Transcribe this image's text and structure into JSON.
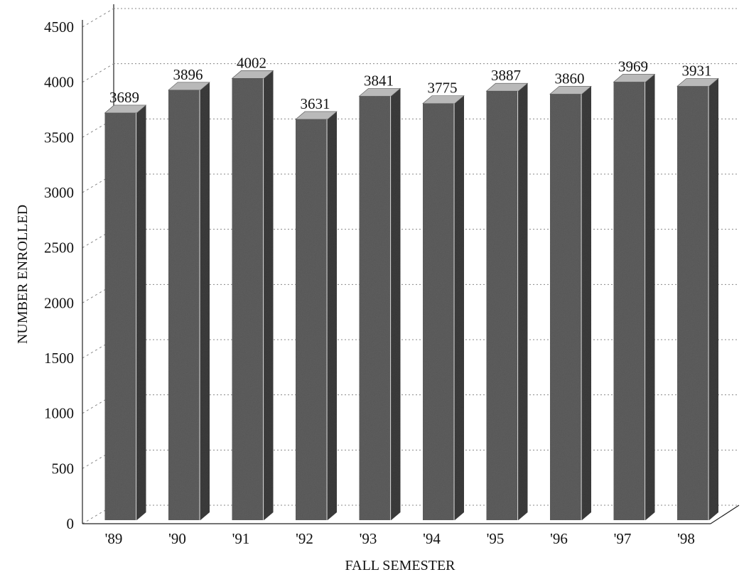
{
  "chart_data": {
    "type": "bar",
    "title": "",
    "xlabel": "FALL SEMESTER",
    "ylabel": "NUMBER ENROLLED",
    "categories": [
      "'89",
      "'90",
      "'91",
      "'92",
      "'93",
      "'94",
      "'95",
      "'96",
      "'97",
      "'98"
    ],
    "values": [
      3689,
      3896,
      4002,
      3631,
      3841,
      3775,
      3887,
      3860,
      3969,
      3931
    ],
    "data_labels": [
      "3689",
      "3896",
      "4002",
      "3631",
      "3841",
      "3775",
      "3887",
      "3860",
      "3969",
      "3931"
    ],
    "ylim": [
      0,
      4500
    ],
    "yticks": [
      "0",
      "500",
      "1000",
      "1500",
      "2000",
      "2500",
      "3000",
      "3500",
      "4000",
      "4500"
    ],
    "grid": true,
    "style": "3d",
    "colors": {
      "bar_front": "#5e5e5e",
      "bar_side": "#3c3c3c",
      "bar_top": "#b9b9b9"
    }
  }
}
